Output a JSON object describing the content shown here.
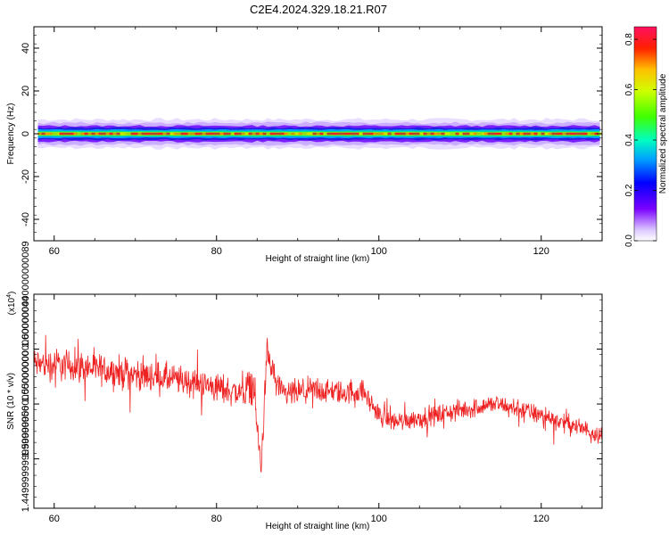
{
  "title": "C2E4.2024.329.18.21.R07",
  "chart_data": [
    {
      "type": "heatmap",
      "xlabel": "Height of straight line (km)",
      "ylabel": "Frequency (Hz)",
      "xlim": [
        57.5,
        127.5
      ],
      "ylim": [
        -50,
        50
      ],
      "x_ticks": [
        60,
        80,
        100,
        120
      ],
      "y_ticks": [
        -40,
        -20,
        0,
        20,
        40
      ],
      "band": {
        "center_hz": 0,
        "halfwidth_hz": 3.5,
        "x_start": 58
      },
      "colorbar": {
        "label": "Normalized spectral amplitude",
        "range": [
          0,
          0.85
        ],
        "ticks": [
          0.0,
          0.2,
          0.4,
          0.6,
          0.8
        ]
      }
    },
    {
      "type": "line",
      "xlabel": "Height of straight line (km)",
      "ylabel": "SNR (10 * v/v)",
      "exponent_label": "(x10",
      "exponent_sup": "4",
      "exponent_close": ")",
      "xlim": [
        57.5,
        127.5
      ],
      "ylim": [
        1.405,
        1.6
      ],
      "x_ticks": [
        60,
        80,
        100,
        120
      ],
      "y_ticks": [
        1.45,
        1.5,
        1.55,
        1.6
      ],
      "series_color": "#ee2222",
      "trend": {
        "x": [
          57.5,
          62,
          66,
          70,
          75,
          80,
          83,
          84.5,
          85.5,
          86.2,
          88,
          92,
          96,
          98,
          100,
          102,
          106,
          110,
          114,
          118,
          122,
          127.5
        ],
        "y": [
          1.537,
          1.535,
          1.531,
          1.527,
          1.522,
          1.515,
          1.51,
          1.52,
          1.44,
          1.545,
          1.508,
          1.512,
          1.51,
          1.512,
          1.49,
          1.484,
          1.488,
          1.494,
          1.5,
          1.494,
          1.485,
          1.472
        ]
      },
      "noise_amplitude": [
        {
          "x": 57.5,
          "a": 0.022
        },
        {
          "x": 85,
          "a": 0.02
        },
        {
          "x": 100,
          "a": 0.014
        },
        {
          "x": 127.5,
          "a": 0.012
        }
      ]
    }
  ]
}
